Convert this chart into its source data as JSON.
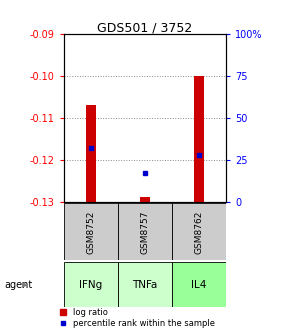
{
  "title": "GDS501 / 3752",
  "samples": [
    "GSM8752",
    "GSM8757",
    "GSM8762"
  ],
  "agents": [
    "IFNg",
    "TNFa",
    "IL4"
  ],
  "log_ratios": [
    -0.107,
    -0.129,
    -0.1
  ],
  "percentile_ranks": [
    32,
    17,
    28
  ],
  "ylim_left": [
    -0.13,
    -0.09
  ],
  "ylim_right": [
    0,
    100
  ],
  "yticks_left": [
    -0.13,
    -0.12,
    -0.11,
    -0.1,
    -0.09
  ],
  "yticks_right": [
    0,
    25,
    50,
    75,
    100
  ],
  "ytick_labels_left": [
    "-0.13",
    "-0.12",
    "-0.11",
    "-0.10",
    "-0.09"
  ],
  "ytick_labels_right": [
    "0",
    "25",
    "50",
    "75",
    "100%"
  ],
  "bar_color": "#cc0000",
  "dot_color": "#0000cc",
  "agent_colors": [
    "#ccffcc",
    "#ccffcc",
    "#99ff99"
  ],
  "sample_bg_color": "#cccccc",
  "grid_color": "#888888",
  "bar_width": 0.18
}
